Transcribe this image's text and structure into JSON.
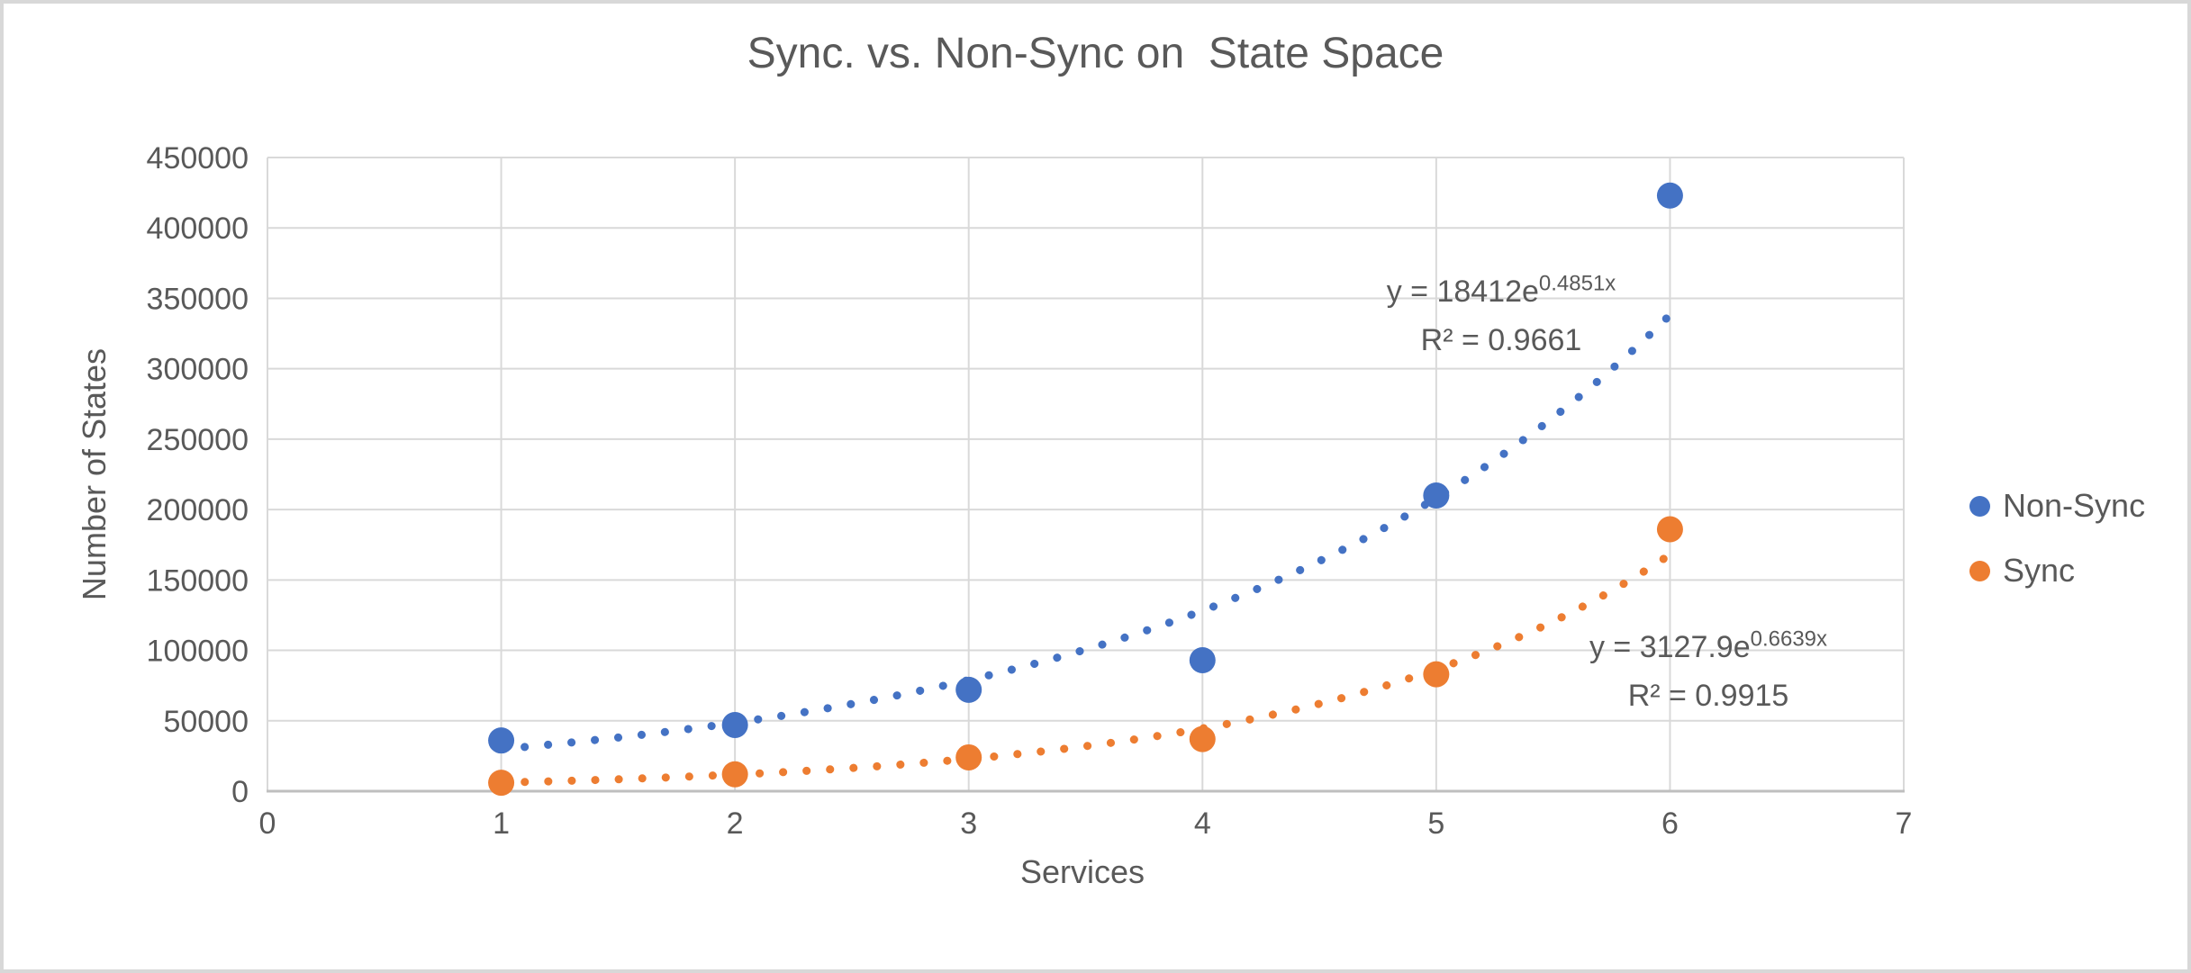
{
  "chart_data": {
    "type": "scatter",
    "title": "Sync. vs. Non-Sync on  State Space",
    "xlabel": "Services",
    "ylabel": "Number of States",
    "xlim": [
      0,
      7
    ],
    "ylim": [
      0,
      450000
    ],
    "x_ticks": [
      0,
      1,
      2,
      3,
      4,
      5,
      6,
      7
    ],
    "y_ticks": [
      0,
      50000,
      100000,
      150000,
      200000,
      250000,
      300000,
      350000,
      400000,
      450000
    ],
    "grid": true,
    "legend_position": "right",
    "series": [
      {
        "name": "Non-Sync",
        "color": "#4472C4",
        "marker": "circle",
        "x": [
          1,
          2,
          3,
          4,
          5,
          6
        ],
        "y": [
          36000,
          47000,
          72000,
          93000,
          210000,
          423000
        ],
        "trendline": {
          "type": "exponential",
          "a": 18412,
          "b": 0.4851,
          "x_range": [
            1,
            6
          ],
          "style": "dotted",
          "eq_base": "y = 18412e",
          "eq_exp": "0.4851x",
          "r2": "R² = 0.9661"
        }
      },
      {
        "name": "Sync",
        "color": "#ED7D31",
        "marker": "circle",
        "x": [
          1,
          2,
          3,
          4,
          5,
          6
        ],
        "y": [
          6000,
          12000,
          24000,
          37000,
          83000,
          186000
        ],
        "trendline": {
          "type": "exponential",
          "a": 3127.9,
          "b": 0.6639,
          "x_range": [
            1,
            6
          ],
          "style": "dotted",
          "eq_base": "y = 3127.9e",
          "eq_exp": "0.6639x",
          "r2": "R² = 0.9915"
        }
      }
    ],
    "colors": {
      "text": "#595959",
      "gridline": "#d9d9d9",
      "axis_line": "#bfbfbf",
      "frame_border": "#d8d8d8"
    }
  }
}
